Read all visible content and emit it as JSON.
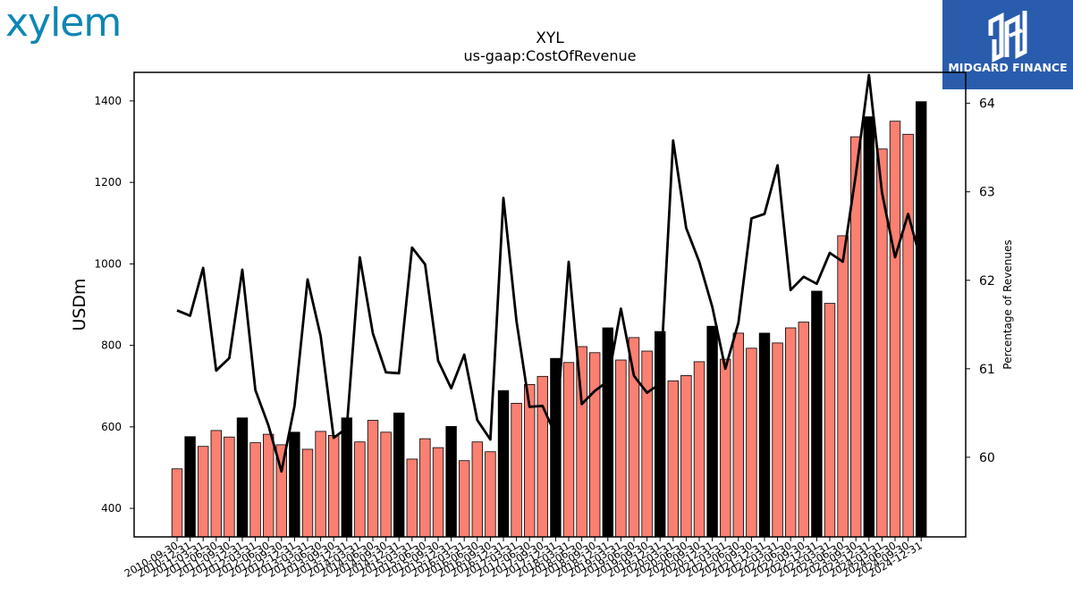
{
  "brand": {
    "logo_text": "xylem",
    "badge_text": "MIDGARD FINANCE",
    "badge_icon": "midgard-monogram-icon"
  },
  "colors": {
    "bar_quarter": "#fa8072",
    "bar_year_end": "#000000",
    "line": "#000000",
    "badge_bg": "#2a5cad",
    "logo": "#0e86b4"
  },
  "chart_data": {
    "type": "bar",
    "title": "XYL",
    "subtitle": "us-gaap:CostOfRevenue",
    "ylabel": "USDm",
    "y2label": "Percentage of Revenues",
    "ylim": [
      330,
      1470
    ],
    "y2lim": [
      59.1,
      64.35
    ],
    "yticks": [
      400,
      600,
      800,
      1000,
      1200,
      1400
    ],
    "y2ticks": [
      60,
      61,
      62,
      63,
      64
    ],
    "grid": false,
    "categories": [
      "2010-09-30",
      "2010-12-31",
      "2011-03-31",
      "2011-06-30",
      "2011-09-30",
      "2011-12-31",
      "2012-03-31",
      "2012-06-30",
      "2012-09-30",
      "2012-12-31",
      "2013-03-31",
      "2013-06-30",
      "2013-09-30",
      "2013-12-31",
      "2014-03-31",
      "2014-06-30",
      "2014-09-30",
      "2014-12-31",
      "2015-03-31",
      "2015-06-30",
      "2015-09-30",
      "2015-12-31",
      "2016-03-31",
      "2016-06-30",
      "2016-09-30",
      "2016-12-31",
      "2017-03-31",
      "2017-06-30",
      "2017-09-30",
      "2017-12-31",
      "2018-03-31",
      "2018-06-30",
      "2018-09-30",
      "2018-12-31",
      "2019-03-31",
      "2019-06-30",
      "2019-09-30",
      "2019-12-31",
      "2020-03-31",
      "2020-06-30",
      "2020-09-30",
      "2020-12-31",
      "2021-03-31",
      "2021-06-30",
      "2021-09-30",
      "2021-12-31",
      "2022-03-31",
      "2022-06-30",
      "2022-09-30",
      "2022-12-31",
      "2023-03-31",
      "2023-06-30",
      "2023-09-30",
      "2023-12-31",
      "2024-03-31",
      "2024-06-30",
      "2024-09-30",
      "2024-12-31"
    ],
    "series": [
      {
        "kind": "bar",
        "values": [
          497,
          576,
          552,
          591,
          575,
          622,
          561,
          582,
          556,
          587,
          545,
          589,
          579,
          622,
          563,
          616,
          587,
          634,
          521,
          571,
          549,
          601,
          517,
          563,
          539,
          689,
          658,
          704,
          724,
          768,
          758,
          797,
          782,
          843,
          764,
          819,
          786,
          834,
          713,
          726,
          760,
          847,
          766,
          830,
          793,
          830,
          806,
          843,
          857,
          933,
          903,
          1069,
          1312,
          1361,
          1282,
          1350,
          1318,
          1398
        ]
      },
      {
        "kind": "line",
        "axis": "y2",
        "values": [
          61.66,
          61.6,
          62.14,
          60.98,
          61.12,
          62.12,
          60.76,
          60.36,
          59.84,
          60.58,
          62.01,
          61.37,
          60.22,
          60.33,
          62.26,
          61.4,
          60.96,
          60.95,
          62.37,
          62.18,
          61.09,
          60.78,
          61.16,
          60.42,
          60.2,
          62.93,
          61.54,
          60.57,
          60.58,
          60.25,
          62.21,
          60.6,
          60.75,
          60.86,
          61.68,
          60.92,
          60.73,
          60.83,
          63.58,
          62.59,
          62.21,
          61.7,
          61.0,
          61.52,
          62.7,
          62.75,
          63.3,
          61.89,
          62.04,
          61.96,
          62.31,
          62.21,
          63.2,
          64.32,
          62.99,
          62.26,
          62.75,
          62.21
        ]
      }
    ],
    "bar_highlight": "year-end (December) quarters drawn black, other quarters salmon"
  }
}
